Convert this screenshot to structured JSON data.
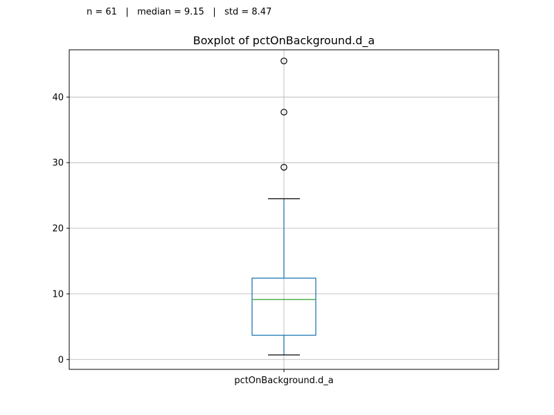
{
  "stats_text": "n = 61   |   median = 9.15   |   std = 8.47",
  "chart_data": {
    "type": "box",
    "title": "Boxplot of pctOnBackground.d_a",
    "categories": [
      "pctOnBackground.d_a"
    ],
    "xlabel": "",
    "ylabel": "",
    "ylim": [
      -1.5,
      47.2
    ],
    "yticks": [
      0,
      10,
      20,
      30,
      40
    ],
    "grid": true,
    "box": {
      "whisker_low": 0.7,
      "q1": 3.7,
      "median": 9.15,
      "q3": 12.4,
      "whisker_high": 24.5,
      "outliers": [
        29.3,
        37.7,
        45.5
      ]
    },
    "colors": {
      "box": "#1f77b4",
      "median": "#2ca02c",
      "whisker_cap": "#000000",
      "outlier": "#000000",
      "grid": "#b0b0b0"
    }
  }
}
